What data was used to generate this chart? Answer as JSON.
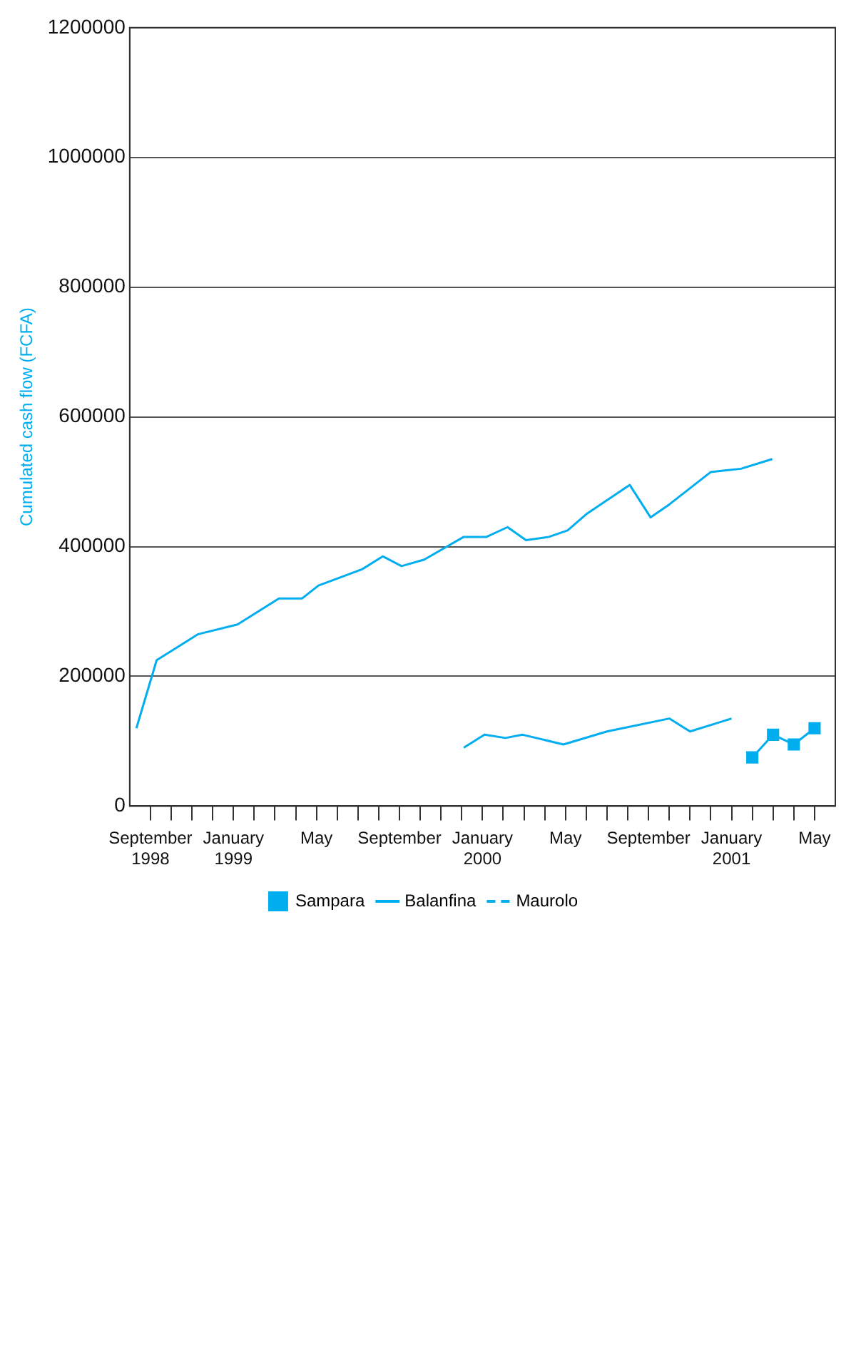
{
  "chart_data": {
    "type": "line",
    "ylabel": "Cumulated cash flow (FCFA)",
    "xlim": [
      "1998-08",
      "2001-06"
    ],
    "xticks": [
      {
        "value": "1998-09",
        "label": "September 1998"
      },
      {
        "value": "1998-10",
        "label": null
      },
      {
        "value": "1998-11",
        "label": null
      },
      {
        "value": "1998-12",
        "label": null
      },
      {
        "value": "1999-01",
        "label": "January 1999"
      },
      {
        "value": "1999-02",
        "label": null
      },
      {
        "value": "1999-03",
        "label": null
      },
      {
        "value": "1999-04",
        "label": null
      },
      {
        "value": "1999-05",
        "label": "May"
      },
      {
        "value": "1999-06",
        "label": null
      },
      {
        "value": "1999-07",
        "label": null
      },
      {
        "value": "1999-08",
        "label": null
      },
      {
        "value": "1999-09",
        "label": "September"
      },
      {
        "value": "1999-10",
        "label": null
      },
      {
        "value": "1999-11",
        "label": null
      },
      {
        "value": "1999-12",
        "label": null
      },
      {
        "value": "2000-01",
        "label": "January 2000"
      },
      {
        "value": "2000-02",
        "label": null
      },
      {
        "value": "2000-03",
        "label": null
      },
      {
        "value": "2000-04",
        "label": null
      },
      {
        "value": "2000-05",
        "label": "May"
      },
      {
        "value": "2000-06",
        "label": null
      },
      {
        "value": "2000-07",
        "label": null
      },
      {
        "value": "2000-08",
        "label": null
      },
      {
        "value": "2000-09",
        "label": "September"
      },
      {
        "value": "2000-10",
        "label": null
      },
      {
        "value": "2000-11",
        "label": null
      },
      {
        "value": "2000-12",
        "label": null
      },
      {
        "value": "2001-01",
        "label": "January 2001"
      },
      {
        "value": "2001-02",
        "label": null
      },
      {
        "value": "2001-03",
        "label": null
      },
      {
        "value": "2001-04",
        "label": null
      },
      {
        "value": "2001-05",
        "label": "May"
      }
    ],
    "ylim": [
      0,
      1200000
    ],
    "yticks": [
      0,
      200000,
      400000,
      600000,
      800000,
      1000000,
      1200000
    ],
    "grid": "y",
    "legend": "bottom",
    "series": [
      {
        "name": "Sampara",
        "color": "#00aeef",
        "marker": "square",
        "x": [
          "2001-02-01",
          "2001-03-01",
          "2001-04-01",
          "2001-05-01"
        ],
        "values": [
          75000,
          110000,
          95000,
          120000
        ]
      },
      {
        "name": "Balanfina",
        "color": "#00aeef",
        "marker": "none",
        "line_style": "solid",
        "x": [
          "1998-08-11",
          "1998-09-10",
          "1998-11-10",
          "1999-01-07",
          "1999-03-07",
          "1999-04-10",
          "1999-05-04",
          "1999-07-07",
          "1999-08-07",
          "1999-09-04",
          "1999-10-07",
          "1999-12-04",
          "2000-01-07",
          "2000-02-07",
          "2000-03-04",
          "2000-04-07",
          "2000-05-04",
          "2000-06-01",
          "2000-08-04",
          "2000-09-04",
          "2000-10-01",
          "2000-12-01",
          "2001-01-15",
          "2001-02-28"
        ],
        "values": [
          120000,
          225000,
          265000,
          280000,
          320000,
          320000,
          340000,
          365000,
          385000,
          370000,
          380000,
          415000,
          415000,
          430000,
          410000,
          415000,
          425000,
          450000,
          495000,
          445000,
          465000,
          515000,
          520000,
          535000
        ]
      },
      {
        "name": "Maurolo",
        "color": "#00aeef",
        "marker": "none",
        "line_style": "dashed"
      },
      {
        "color": "#00aeef",
        "marker": "none",
        "line_style": "solid",
        "x": [
          "1999-12-04",
          "2000-01-04",
          "2000-02-04",
          "2000-02-28",
          "2000-04-28",
          "2000-07-01",
          "2000-10-01",
          "2000-11-01",
          "2001-01-01"
        ],
        "values": [
          90000,
          110000,
          105000,
          110000,
          95000,
          115000,
          135000,
          115000,
          135000
        ]
      }
    ]
  }
}
